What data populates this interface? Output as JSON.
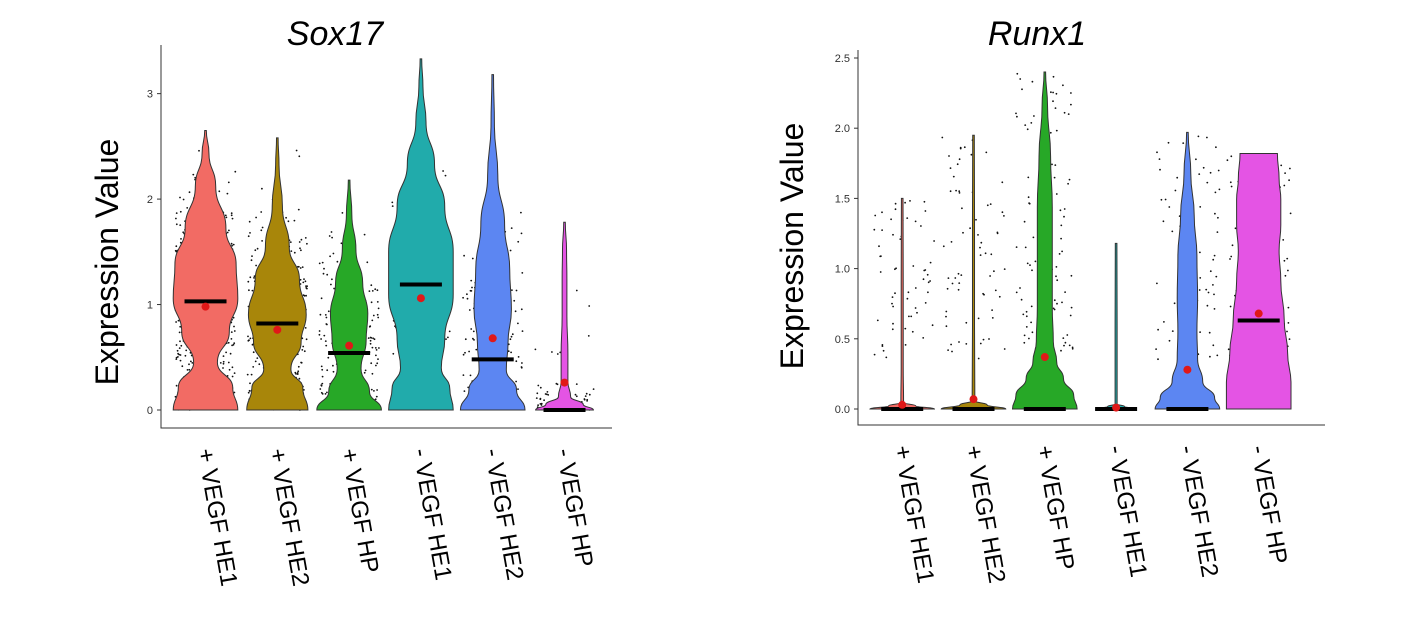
{
  "chart_data": [
    {
      "type": "violin",
      "title": "Sox17",
      "ylabel": "Expression Value",
      "ylim": [
        0,
        3.3
      ],
      "yticks": [
        "0",
        "1",
        "2",
        "3"
      ],
      "categories": [
        "+ VEGF HE1",
        "+ VEGF HE2",
        "+ VEGF HP",
        "- VEGF HE1",
        "- VEGF HE2",
        "- VEGF HP"
      ],
      "colors": [
        "#F26B64",
        "#A8860A",
        "#27A827",
        "#21ABAB",
        "#5C86F2",
        "#E454E4"
      ],
      "max": [
        2.65,
        2.58,
        2.18,
        3.33,
        3.18,
        1.78
      ],
      "median": [
        1.03,
        0.82,
        0.54,
        1.19,
        0.48,
        0.0
      ],
      "mean": [
        0.98,
        0.76,
        0.61,
        1.06,
        0.68,
        0.26
      ]
    },
    {
      "type": "violin",
      "title": "Runx1",
      "ylabel": "Expression Value",
      "ylim": [
        0,
        2.5
      ],
      "yticks": [
        "0.0",
        "0.5",
        "1.0",
        "1.5",
        "2.0",
        "2.5"
      ],
      "categories": [
        "+ VEGF HE1",
        "+ VEGF HE2",
        "+ VEGF HP",
        "- VEGF HE1",
        "- VEGF HE2",
        "- VEGF HP"
      ],
      "colors": [
        "#F26B64",
        "#A8860A",
        "#27A827",
        "#21ABAB",
        "#5C86F2",
        "#E454E4"
      ],
      "max": [
        1.5,
        1.95,
        2.4,
        1.18,
        1.97,
        1.82
      ],
      "median": [
        0.0,
        0.0,
        0.0,
        0.0,
        0.0,
        0.63
      ],
      "mean": [
        0.03,
        0.07,
        0.37,
        0.01,
        0.28,
        0.68
      ]
    }
  ]
}
